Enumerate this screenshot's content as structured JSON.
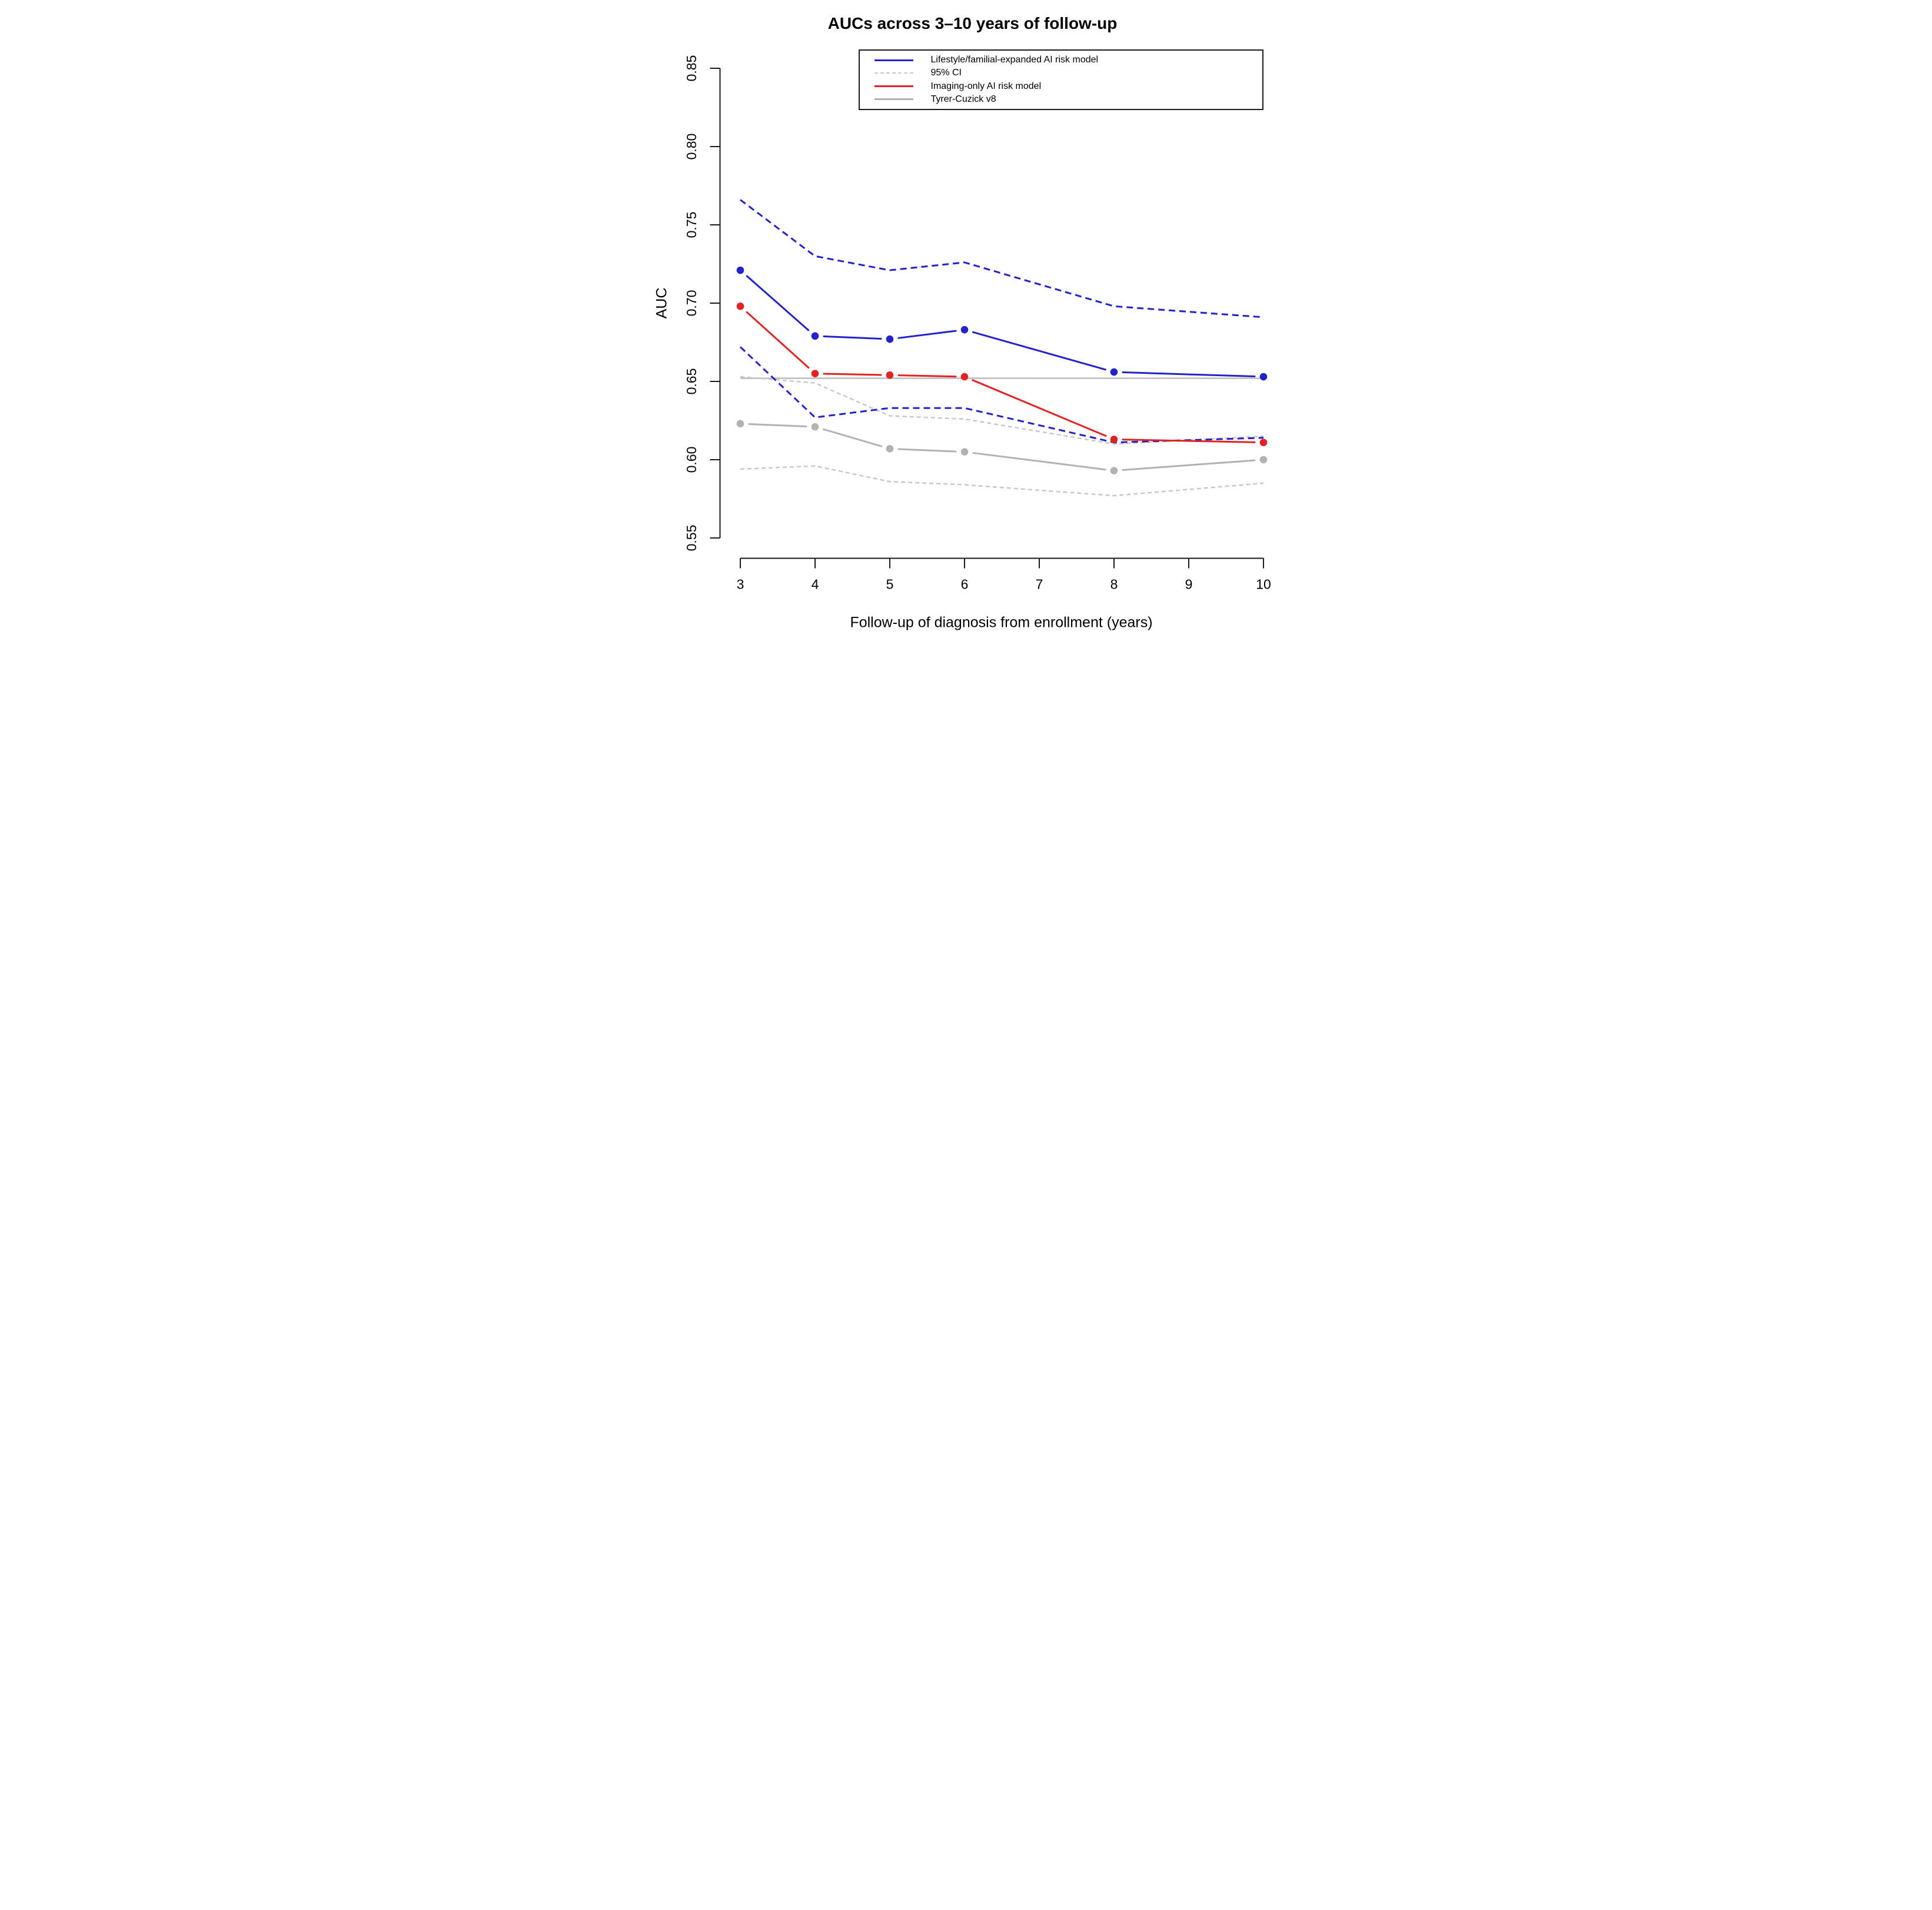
{
  "title": "AUCs across 3–10 years of follow-up",
  "x_axis": {
    "label": "Follow-up of diagnosis from enrollment (years)",
    "ticks": [
      "3",
      "4",
      "5",
      "6",
      "7",
      "8",
      "9",
      "10"
    ],
    "range": [
      3,
      10
    ]
  },
  "y_axis": {
    "label": "AUC",
    "ticks": [
      "0.55",
      "0.60",
      "0.65",
      "0.70",
      "0.75",
      "0.80",
      "0.85"
    ],
    "range": [
      0.55,
      0.85
    ]
  },
  "legend": {
    "items": [
      {
        "label": "Lifestyle/familial-expanded AI risk model",
        "color": "#2222CC",
        "dash": "solid",
        "width": 3
      },
      {
        "label": "95% CI",
        "color": "#C8C8C8",
        "dash": "dashed",
        "width": 2.5
      },
      {
        "label": "Imaging-only AI risk model",
        "color": "#E42222",
        "dash": "solid",
        "width": 3
      },
      {
        "label": "Tyrer-Cuzick v8",
        "color": "#B2B2B2",
        "dash": "solid",
        "width": 3
      }
    ]
  },
  "chart_data": {
    "type": "line",
    "x": [
      3,
      4,
      5,
      6,
      8,
      10
    ],
    "series": [
      {
        "name": "Tyrer-Cuzick v8 95% CI upper",
        "color": "#C8C8C8",
        "style": "dashed",
        "markers": false,
        "values": [
          0.653,
          0.649,
          0.628,
          0.626,
          0.61,
          0.615
        ]
      },
      {
        "name": "Tyrer-Cuzick v8 95% CI lower",
        "color": "#C8C8C8",
        "style": "dashed",
        "markers": false,
        "values": [
          0.594,
          0.596,
          0.586,
          0.584,
          0.577,
          0.585
        ]
      },
      {
        "name": "Lifestyle/familial-expanded AI 95% CI upper",
        "color": "#2222CC",
        "style": "dashed",
        "markers": false,
        "values": [
          0.766,
          0.73,
          0.721,
          0.726,
          0.698,
          0.691
        ]
      },
      {
        "name": "Lifestyle/familial-expanded AI 95% CI lower",
        "color": "#2222CC",
        "style": "dashed",
        "markers": false,
        "values": [
          0.672,
          0.627,
          0.633,
          0.633,
          0.611,
          0.614
        ]
      },
      {
        "name": "Tyrer-Cuzick v8",
        "color": "#B2B2B2",
        "style": "solid",
        "markers": true,
        "values": [
          0.623,
          0.621,
          0.607,
          0.605,
          0.593,
          0.6
        ]
      },
      {
        "name": "Imaging-only AI risk model",
        "color": "#E42222",
        "style": "solid",
        "markers": true,
        "values": [
          0.698,
          0.655,
          0.654,
          0.653,
          0.613,
          0.611
        ]
      },
      {
        "name": "Lifestyle/familial-expanded AI risk model",
        "color": "#2222CC",
        "style": "solid",
        "markers": true,
        "values": [
          0.721,
          0.679,
          0.677,
          0.683,
          0.656,
          0.653
        ]
      }
    ],
    "reference_line": {
      "value": 0.652,
      "color": "#BCBCBC"
    },
    "title": "AUCs across 3–10 years of follow-up",
    "xlabel": "Follow-up of diagnosis from enrollment (years)",
    "ylabel": "AUC",
    "xlim": [
      3,
      10
    ],
    "ylim": [
      0.55,
      0.85
    ],
    "grid": false,
    "legend_position": "top-center"
  }
}
